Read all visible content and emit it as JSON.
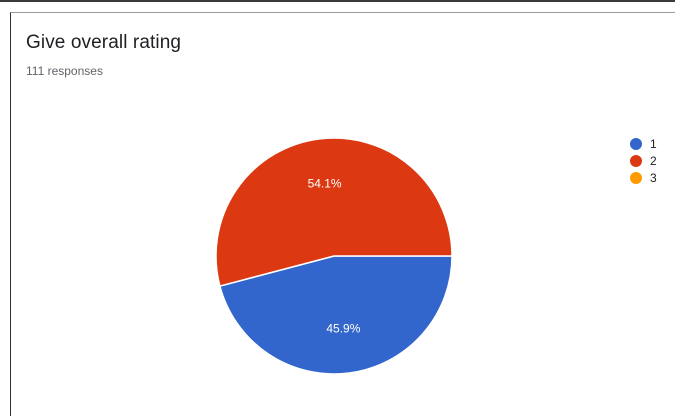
{
  "card": {
    "title": "Give overall rating",
    "subtitle": "111 responses"
  },
  "chart_data": {
    "type": "pie",
    "title": "Give overall rating",
    "subtitle": "111 responses",
    "categories": [
      "1",
      "2",
      "3"
    ],
    "values": [
      45.9,
      54.1,
      0
    ],
    "value_labels": [
      "45.9%",
      "54.1%",
      ""
    ],
    "colors": [
      "#3366cc",
      "#dc3912",
      "#ff9900"
    ],
    "legend_position": "right"
  }
}
